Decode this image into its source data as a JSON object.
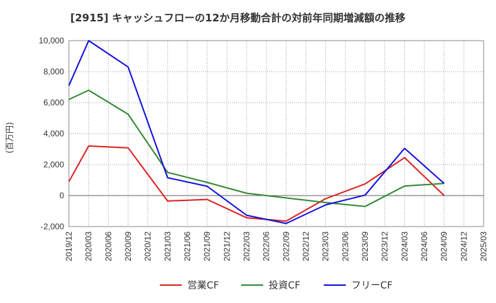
{
  "chart_data": {
    "type": "line",
    "title": "[2915]  キャッシュフローの12か月移動合計の対前年同期増減額の推移",
    "ylabel": "(百万円)",
    "xlabel": "",
    "ylim": [
      -2000,
      10000
    ],
    "yticks": [
      -2000,
      0,
      2000,
      4000,
      6000,
      8000,
      10000
    ],
    "ytick_labels": [
      "-2,000",
      "0",
      "2,000",
      "4,000",
      "6,000",
      "8,000",
      "10,000"
    ],
    "categories": [
      "2019/12",
      "2020/03",
      "2020/06",
      "2020/09",
      "2020/12",
      "2021/03",
      "2021/06",
      "2021/09",
      "2021/12",
      "2022/03",
      "2022/06",
      "2022/09",
      "2022/12",
      "2023/03",
      "2023/06",
      "2023/09",
      "2023/12",
      "2024/03",
      "2024/06",
      "2024/09",
      "2024/12",
      "2025/03"
    ],
    "legend_position": "bottom",
    "series": [
      {
        "name": "営業CF",
        "color": "#dd2222",
        "x": [
          "2019/12",
          "2020/03",
          "2020/09",
          "2021/03",
          "2021/09",
          "2022/03",
          "2022/09",
          "2023/03",
          "2023/09",
          "2024/03",
          "2024/09"
        ],
        "values": [
          900,
          3200,
          3080,
          -350,
          -250,
          -1430,
          -1650,
          -200,
          750,
          2450,
          0
        ]
      },
      {
        "name": "投資CF",
        "color": "#338833",
        "x": [
          "2019/12",
          "2020/03",
          "2020/09",
          "2021/03",
          "2021/09",
          "2022/03",
          "2022/09",
          "2023/03",
          "2023/09",
          "2024/03",
          "2024/09"
        ],
        "values": [
          6200,
          6800,
          5250,
          1500,
          850,
          150,
          -150,
          -450,
          -700,
          620,
          780
        ]
      },
      {
        "name": "フリーCF",
        "color": "#1111dd",
        "x": [
          "2019/12",
          "2020/03",
          "2020/09",
          "2021/03",
          "2021/09",
          "2022/03",
          "2022/09",
          "2023/03",
          "2023/09",
          "2024/03",
          "2024/09"
        ],
        "values": [
          7100,
          10000,
          8300,
          1150,
          600,
          -1270,
          -1800,
          -600,
          30,
          3050,
          780
        ]
      }
    ]
  }
}
